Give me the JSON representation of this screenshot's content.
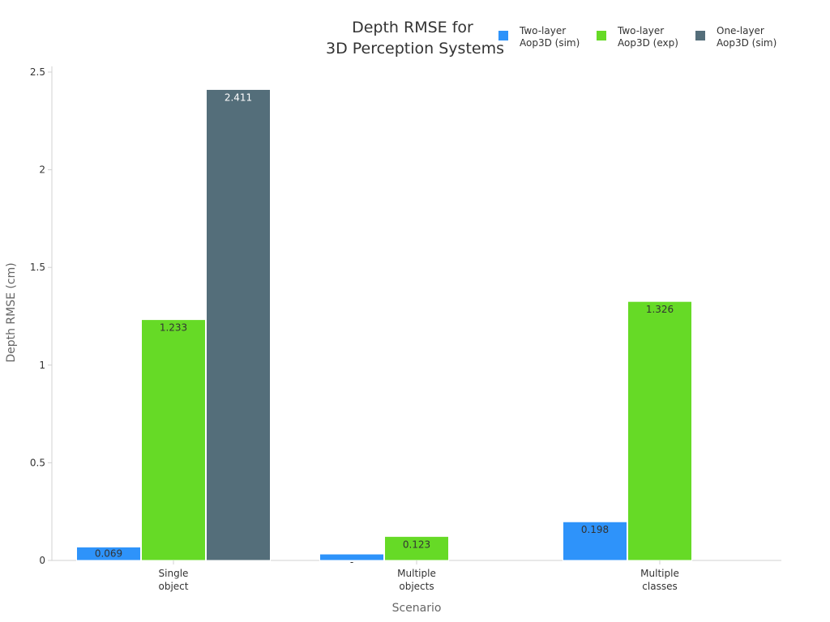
{
  "chart_data": {
    "type": "bar",
    "title": [
      "Depth RMSE for",
      "3D Perception Systems"
    ],
    "xlabel": "Scenario",
    "ylabel": "Depth RMSE (cm)",
    "ylim": [
      0,
      2.5
    ],
    "yticks": [
      "0",
      "0.5",
      "1",
      "1.5",
      "2",
      "2.5"
    ],
    "categories": [
      [
        "Single",
        "object"
      ],
      [
        "Multiple",
        "objects"
      ],
      [
        "Multiple",
        "classes"
      ]
    ],
    "series": [
      {
        "name": [
          "Two-layer",
          "Aop3D (sim)"
        ],
        "color": "#2e93fa",
        "values": [
          0.069,
          0.033,
          0.198
        ],
        "labels": [
          "0.069",
          "-",
          "0.198"
        ]
      },
      {
        "name": [
          "Two-layer",
          "Aop3D (exp)"
        ],
        "color": "#66da26",
        "values": [
          1.233,
          0.123,
          1.326
        ],
        "labels": [
          "1.233",
          "0.123",
          "1.326"
        ]
      },
      {
        "name": [
          "One-layer",
          "Aop3D (sim)"
        ],
        "color": "#546e7a",
        "values": [
          2.411,
          null,
          null
        ],
        "labels": [
          "2.411",
          null,
          null
        ]
      }
    ],
    "legend_position": "top-right",
    "grid": false
  }
}
